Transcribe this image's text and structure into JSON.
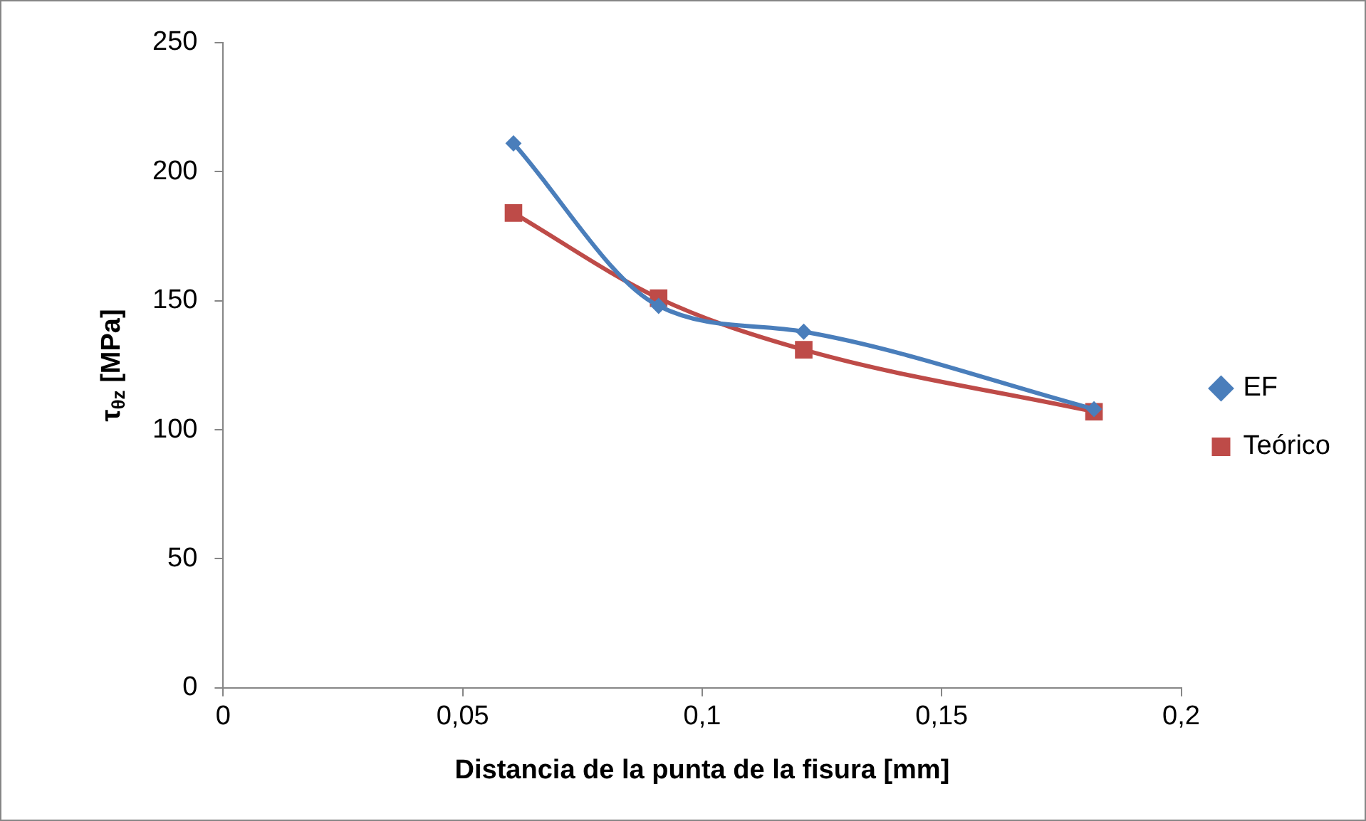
{
  "chart_data": {
    "type": "line",
    "xlabel": "Distancia de la punta de la fisura [mm]",
    "ylabel": "τ$_{θz}$ [MPa]",
    "xlim": [
      0,
      0.2
    ],
    "xticks": [
      {
        "value": 0,
        "label": "0"
      },
      {
        "value": 0.05,
        "label": "0,05"
      },
      {
        "value": 0.1,
        "label": "0,1"
      },
      {
        "value": 0.15,
        "label": "0,15"
      },
      {
        "value": 0.2,
        "label": "0,2"
      }
    ],
    "ylim": [
      0,
      250
    ],
    "yticks": [
      0,
      50,
      100,
      150,
      200,
      250
    ],
    "grid": false,
    "legend": "right",
    "line_style": "solid",
    "series": [
      {
        "name": "EF",
        "color": "#4a7ebb",
        "marker": "diamond",
        "x": [
          0.0606,
          0.0909,
          0.1212,
          0.1818
        ],
        "values": [
          211,
          148,
          138,
          108
        ]
      },
      {
        "name": "Teórico",
        "color": "#be4b48",
        "marker": "square",
        "x": [
          0.0606,
          0.0909,
          0.1212,
          0.1818
        ],
        "values": [
          184,
          151,
          131,
          107
        ]
      }
    ]
  }
}
